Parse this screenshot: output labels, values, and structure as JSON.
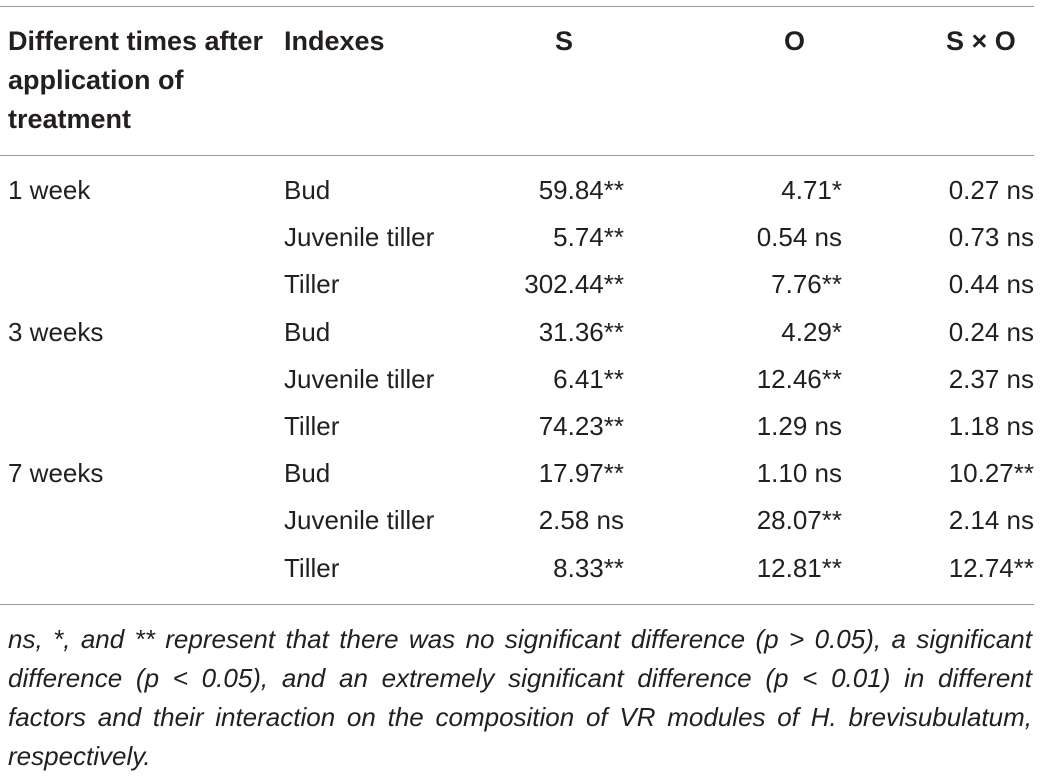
{
  "table": {
    "headers": {
      "times": "Different times after application of treatment",
      "indexes": "Indexes",
      "s": "S",
      "o": "O",
      "sxo": "S × O"
    },
    "rows": [
      {
        "time": "1 week",
        "index": "Bud",
        "s": "59.84**",
        "o": "4.71*",
        "sxo": "0.27 ns"
      },
      {
        "time": "",
        "index": "Juvenile tiller",
        "s": "5.74**",
        "o": "0.54 ns",
        "sxo": "0.73 ns"
      },
      {
        "time": "",
        "index": "Tiller",
        "s": "302.44**",
        "o": "7.76**",
        "sxo": "0.44 ns"
      },
      {
        "time": "3 weeks",
        "index": "Bud",
        "s": "31.36**",
        "o": "4.29*",
        "sxo": "0.24 ns"
      },
      {
        "time": "",
        "index": "Juvenile tiller",
        "s": "6.41**",
        "o": "12.46**",
        "sxo": "2.37 ns"
      },
      {
        "time": "",
        "index": "Tiller",
        "s": "74.23**",
        "o": "1.29 ns",
        "sxo": "1.18 ns"
      },
      {
        "time": "7 weeks",
        "index": "Bud",
        "s": "17.97**",
        "o": "1.10 ns",
        "sxo": "10.27**"
      },
      {
        "time": "",
        "index": "Juvenile tiller",
        "s": "2.58 ns",
        "o": "28.07**",
        "sxo": "2.14 ns"
      },
      {
        "time": "",
        "index": "Tiller",
        "s": "8.33**",
        "o": "12.81**",
        "sxo": "12.74**"
      }
    ],
    "footnote": "ns, *, and ** represent that there was no significant difference (p > 0.05), a significant difference (p < 0.05), and an extremely significant difference (p < 0.01) in different factors and their interaction on the composition of VR modules of H. brevisubulatum, respectively."
  }
}
